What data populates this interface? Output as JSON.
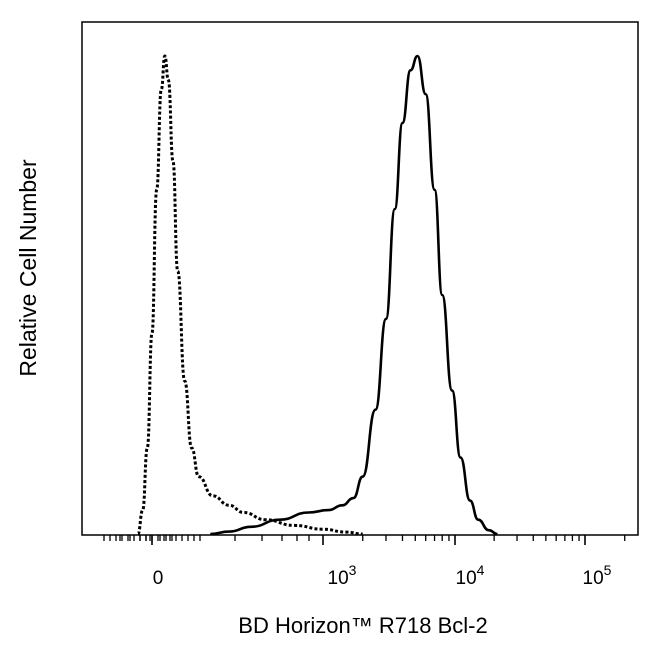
{
  "chart_data": {
    "type": "histogram",
    "xlabel": "BD Horizon™ R718 Bcl-2",
    "ylabel": "Relative Cell Number",
    "x_scale": "biexponential",
    "x_tick_labels": [
      {
        "text": "0",
        "exp": ""
      },
      {
        "text": "10",
        "exp": "3"
      },
      {
        "text": "10",
        "exp": "4"
      },
      {
        "text": "10",
        "exp": "5"
      }
    ],
    "grid": false,
    "legend": "none",
    "series": [
      {
        "style": "dotted",
        "color": "#000000",
        "points": [
          [
            -60,
            0
          ],
          [
            -40,
            0.05
          ],
          [
            -20,
            0.18
          ],
          [
            0,
            0.42
          ],
          [
            20,
            0.72
          ],
          [
            40,
            0.93
          ],
          [
            55,
            1.0
          ],
          [
            70,
            0.95
          ],
          [
            90,
            0.78
          ],
          [
            110,
            0.55
          ],
          [
            140,
            0.32
          ],
          [
            170,
            0.18
          ],
          [
            200,
            0.12
          ],
          [
            260,
            0.08
          ],
          [
            350,
            0.06
          ],
          [
            450,
            0.045
          ],
          [
            600,
            0.03
          ],
          [
            800,
            0.018
          ],
          [
            1000,
            0.01
          ],
          [
            1500,
            0.004
          ],
          [
            2000,
            0
          ]
        ]
      },
      {
        "style": "solid",
        "color": "#000000",
        "points": [
          [
            250,
            0
          ],
          [
            350,
            0.005
          ],
          [
            500,
            0.015
          ],
          [
            700,
            0.03
          ],
          [
            900,
            0.045
          ],
          [
            1100,
            0.05
          ],
          [
            1400,
            0.06
          ],
          [
            1700,
            0.075
          ],
          [
            2000,
            0.12
          ],
          [
            2500,
            0.26
          ],
          [
            3000,
            0.45
          ],
          [
            3500,
            0.68
          ],
          [
            4000,
            0.86
          ],
          [
            4600,
            0.97
          ],
          [
            5200,
            1.0
          ],
          [
            6000,
            0.92
          ],
          [
            7000,
            0.72
          ],
          [
            8000,
            0.5
          ],
          [
            9500,
            0.3
          ],
          [
            11000,
            0.16
          ],
          [
            13000,
            0.07
          ],
          [
            15000,
            0.03
          ],
          [
            18000,
            0.008
          ],
          [
            21000,
            0
          ]
        ]
      }
    ],
    "ylim": [
      0,
      1.05
    ]
  }
}
